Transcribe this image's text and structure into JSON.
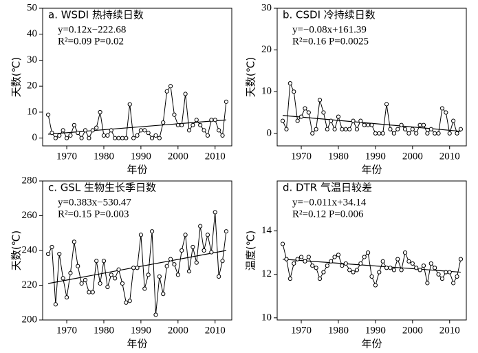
{
  "chart_data": [
    {
      "type": "line",
      "title": "a. WSDI 热持续日数",
      "annotations": [
        "y=0.12x−222.68",
        "R²=0.09 P=0.02"
      ],
      "xlabel": "年份",
      "ylabel": "天数(℃)",
      "x": [
        1965,
        1966,
        1967,
        1968,
        1969,
        1970,
        1971,
        1972,
        1973,
        1974,
        1975,
        1976,
        1977,
        1978,
        1979,
        1980,
        1981,
        1982,
        1983,
        1984,
        1985,
        1986,
        1987,
        1988,
        1989,
        1990,
        1991,
        1992,
        1993,
        1994,
        1995,
        1996,
        1997,
        1998,
        1999,
        2000,
        2001,
        2002,
        2003,
        2004,
        2005,
        2006,
        2007,
        2008,
        2009,
        2010,
        2011,
        2012,
        2013
      ],
      "values": [
        9,
        2,
        0,
        1,
        3,
        0,
        1,
        5,
        2,
        0,
        3,
        0,
        3,
        4,
        10,
        1,
        1,
        3,
        0,
        0,
        0,
        0,
        13,
        0,
        1,
        3,
        3,
        2,
        0,
        1,
        0,
        6,
        18,
        20,
        9,
        5,
        5,
        17,
        3,
        5,
        7,
        5,
        3,
        1,
        7,
        7,
        3,
        1,
        14
      ],
      "trend": {
        "x": [
          1965,
          2013
        ],
        "y": [
          1.5,
          7
        ]
      },
      "xlim": [
        1963.5,
        2014.5
      ],
      "ylim": [
        -3,
        50
      ],
      "xticks": [
        1970,
        1980,
        1990,
        2000,
        2010
      ],
      "yticks": [
        0,
        10,
        20,
        30,
        40,
        50
      ],
      "color": "#000000"
    },
    {
      "type": "line",
      "title": "b. CSDI 冷持续日数",
      "annotations": [
        "y=−0.08x+161.39",
        "R²=0.16 P=0.0025"
      ],
      "xlabel": "年份",
      "ylabel": "天数(℃)",
      "x": [
        1965,
        1966,
        1967,
        1968,
        1969,
        1970,
        1971,
        1972,
        1973,
        1974,
        1975,
        1976,
        1977,
        1978,
        1979,
        1980,
        1981,
        1982,
        1983,
        1984,
        1985,
        1986,
        1987,
        1988,
        1989,
        1990,
        1991,
        1992,
        1993,
        1994,
        1995,
        1996,
        1997,
        1998,
        1999,
        2000,
        2001,
        2002,
        2003,
        2004,
        2005,
        2006,
        2007,
        2008,
        2009,
        2010,
        2011,
        2012,
        2013
      ],
      "values": [
        3,
        1,
        12,
        10,
        3,
        4,
        6,
        5,
        0,
        1,
        8,
        5,
        1,
        3,
        1,
        4,
        1,
        1,
        1,
        3,
        1,
        3,
        2,
        2,
        2,
        0,
        0,
        0,
        7,
        1,
        0,
        1,
        2,
        1,
        0,
        1,
        0,
        2,
        2,
        0,
        1,
        0,
        0,
        6,
        5,
        0,
        3,
        0,
        1
      ],
      "trend": {
        "x": [
          1965,
          2013
        ],
        "y": [
          4.3,
          0.5
        ]
      },
      "xlim": [
        1963.5,
        2014.5
      ],
      "ylim": [
        -3,
        30
      ],
      "xticks": [
        1970,
        1980,
        1990,
        2000,
        2010
      ],
      "yticks": [
        0,
        10,
        20,
        30
      ],
      "color": "#000000"
    },
    {
      "type": "line",
      "title": "c. GSL 生物生长季日数",
      "annotations": [
        "y=0.383x−530.47",
        "R²=0.15 P=0.003"
      ],
      "xlabel": "年份",
      "ylabel": "天数(℃)",
      "x": [
        1965,
        1966,
        1967,
        1968,
        1969,
        1970,
        1971,
        1972,
        1973,
        1974,
        1975,
        1976,
        1977,
        1978,
        1979,
        1980,
        1981,
        1982,
        1983,
        1984,
        1985,
        1986,
        1987,
        1988,
        1989,
        1990,
        1991,
        1992,
        1993,
        1994,
        1995,
        1996,
        1997,
        1998,
        1999,
        2000,
        2001,
        2002,
        2003,
        2004,
        2005,
        2006,
        2007,
        2008,
        2009,
        2010,
        2011,
        2012,
        2013
      ],
      "values": [
        238,
        242,
        209,
        238,
        224,
        213,
        227,
        245,
        231,
        221,
        223,
        216,
        216,
        234,
        221,
        234,
        219,
        226,
        224,
        229,
        221,
        210,
        211,
        230,
        230,
        249,
        218,
        226,
        251,
        203,
        225,
        215,
        231,
        235,
        232,
        226,
        240,
        249,
        228,
        242,
        233,
        254,
        240,
        249,
        239,
        262,
        225,
        234,
        251
      ],
      "trend": {
        "x": [
          1965,
          2013
        ],
        "y": [
          221,
          240
        ]
      },
      "xlim": [
        1963.5,
        2014.5
      ],
      "ylim": [
        200,
        280
      ],
      "xticks": [
        1970,
        1980,
        1990,
        2000,
        2010
      ],
      "yticks": [
        200,
        220,
        240,
        260,
        280
      ],
      "color": "#000000"
    },
    {
      "type": "line",
      "title": "d. DTR 气温日较差",
      "annotations": [
        "y=−0.011x+34.14",
        "R²=0.12 P=0.006"
      ],
      "xlabel": "年份",
      "ylabel": "温度(℃)",
      "x": [
        1965,
        1966,
        1967,
        1968,
        1969,
        1970,
        1971,
        1972,
        1973,
        1974,
        1975,
        1976,
        1977,
        1978,
        1979,
        1980,
        1981,
        1982,
        1983,
        1984,
        1985,
        1986,
        1987,
        1988,
        1989,
        1990,
        1991,
        1992,
        1993,
        1994,
        1995,
        1996,
        1997,
        1998,
        1999,
        2000,
        2001,
        2002,
        2003,
        2004,
        2005,
        2006,
        2007,
        2008,
        2009,
        2010,
        2011,
        2012,
        2013
      ],
      "values": [
        13.4,
        12.7,
        11.8,
        12.5,
        12.7,
        12.8,
        12.6,
        12.8,
        12.4,
        12.3,
        11.8,
        12.1,
        12.4,
        12.6,
        12.8,
        12.9,
        12.4,
        12.5,
        12.2,
        12.1,
        12.2,
        12.5,
        12.8,
        13.0,
        11.9,
        11.5,
        12.1,
        12.6,
        12.3,
        12.3,
        12.2,
        12.7,
        12.2,
        13.0,
        12.6,
        12.5,
        12.3,
        12.2,
        12.4,
        11.6,
        12.5,
        12.3,
        12.0,
        11.8,
        12.1,
        12.1,
        11.6,
        11.9,
        12.7
      ],
      "trend": {
        "x": [
          1965,
          2013
        ],
        "y": [
          12.7,
          12.1
        ]
      },
      "xlim": [
        1963.5,
        2014.5
      ],
      "ylim": [
        9.9,
        16.3
      ],
      "xticks": [
        1970,
        1980,
        1990,
        2000,
        2010
      ],
      "yticks": [
        10,
        12,
        14
      ],
      "color": "#000000"
    }
  ]
}
